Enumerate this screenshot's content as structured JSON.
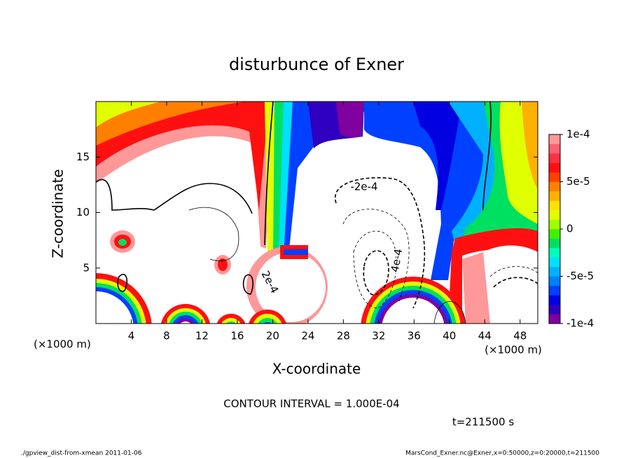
{
  "chart_data": {
    "type": "contour",
    "title": "disturbunce of Exner",
    "x_label": "X-coordinate",
    "y_label": "Z-coordinate",
    "x_unit": "(×1000 m)",
    "y_unit": "(×1000 m)",
    "xlim": [
      0,
      50
    ],
    "xticks": [
      4,
      8,
      12,
      16,
      20,
      24,
      28,
      32,
      36,
      40,
      44,
      48
    ],
    "ylim": [
      0,
      20
    ],
    "yticks": [
      5,
      10,
      15
    ],
    "clim": [
      -0.0001,
      0.0001
    ],
    "cticks": [
      {
        "value": 0.0001,
        "label": "1e-4"
      },
      {
        "value": 5e-05,
        "label": "5e-5"
      },
      0,
      {
        "value": -5e-05,
        "label": "-5e-5"
      },
      {
        "value": -0.0001,
        "label": "-1e-4"
      }
    ],
    "colors": [
      "#8000a0",
      "#3000c0",
      "#0000e0",
      "#0040ff",
      "#0080ff",
      "#00b0ff",
      "#00e0ff",
      "#00ffc0",
      "#00e060",
      "#40f000",
      "#a0ff00",
      "#e0ff00",
      "#ffe000",
      "#ffb000",
      "#ff8000",
      "#ff4000",
      "#ff1010",
      "#ff3040",
      "#ff6070",
      "#ff9898"
    ],
    "contour_labels": [
      "-2e-4",
      "4e-4",
      "2e-4"
    ],
    "contour_interval": "CONTOUR INTERVAL = 1.000E-04",
    "time": "t=211500 s",
    "footer_left": "./gpview_dist-from-xmean  2011-01-06",
    "footer_right": "MarsCond_Exner.nc@Exner,x=0:50000,z=0:20000,t=211500"
  }
}
